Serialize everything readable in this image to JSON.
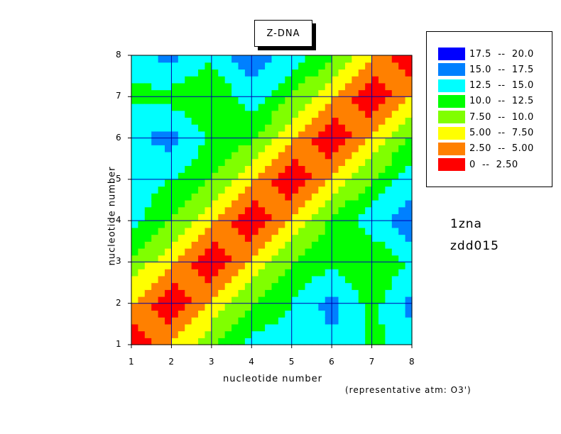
{
  "chart_data": {
    "type": "heatmap",
    "title": "Z-DNA",
    "xlabel": "nucleotide number",
    "ylabel": "nucleotide number",
    "xlim": [
      1,
      8
    ],
    "ylim": [
      1,
      8
    ],
    "x_ticks": [
      "1",
      "2",
      "3",
      "4",
      "5",
      "6",
      "7",
      "8"
    ],
    "y_ticks": [
      "1",
      "2",
      "3",
      "4",
      "5",
      "6",
      "7",
      "8"
    ],
    "grid": true,
    "legend_position": "top-right",
    "legend": [
      {
        "label": "17.5  --  20.0",
        "min": 17.5,
        "max": 20.0,
        "color": "#0000ff"
      },
      {
        "label": "15.0  --  17.5",
        "min": 15.0,
        "max": 17.5,
        "color": "#0080ff"
      },
      {
        "label": "12.5  --  15.0",
        "min": 12.5,
        "max": 15.0,
        "color": "#00ffff"
      },
      {
        "label": "10.0  --  12.5",
        "min": 10.0,
        "max": 12.5,
        "color": "#00ff00"
      },
      {
        "label": "7.50  --  10.0",
        "min": 7.5,
        "max": 10.0,
        "color": "#80ff00"
      },
      {
        "label": "5.00  --  7.50",
        "min": 5.0,
        "max": 7.5,
        "color": "#ffff00"
      },
      {
        "label": "2.50  --  5.00",
        "min": 2.5,
        "max": 5.0,
        "color": "#ff8000"
      },
      {
        "label": "0  --  2.50",
        "min": 0,
        "max": 2.5,
        "color": "#ff0000"
      }
    ],
    "matrix": [
      [
        0,
        5.5,
        9.5,
        13.5,
        13.8,
        14.5,
        12,
        13.5
      ],
      [
        5.5,
        0,
        5.5,
        10,
        12.5,
        16,
        11.5,
        16
      ],
      [
        9.5,
        5.5,
        0,
        5.5,
        10,
        12,
        10,
        13
      ],
      [
        13.5,
        10,
        5.5,
        0,
        5.5,
        10.5,
        14,
        17
      ],
      [
        13.8,
        12.5,
        10,
        5.5,
        0,
        5.5,
        10,
        14
      ],
      [
        14.5,
        16,
        12,
        10.5,
        5.5,
        0,
        5.5,
        10.5
      ],
      [
        12,
        11.5,
        10,
        14,
        10,
        5.5,
        0,
        5.5
      ],
      [
        13.5,
        16,
        13,
        17,
        14,
        10.5,
        5.5,
        0
      ]
    ],
    "annotations": [
      "1zna",
      "zdd015",
      "(representative atm: O3')"
    ]
  }
}
